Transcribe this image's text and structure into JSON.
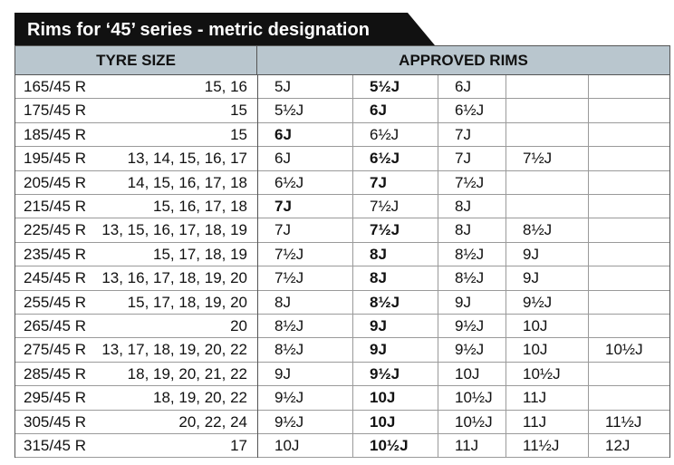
{
  "title": "Rims for ‘45’ series - metric designation",
  "table": {
    "headers": [
      "TYRE SIZE",
      "APPROVED RIMS"
    ],
    "rows": [
      {
        "size": "165/45 R",
        "diameters": "15, 16",
        "rims": [
          "5J",
          "5½J",
          "6J"
        ]
      },
      {
        "size": "175/45 R",
        "diameters": "15",
        "rims": [
          "5½J",
          "6J",
          "6½J"
        ]
      },
      {
        "size": "185/45 R",
        "diameters": "15",
        "rims": [
          "6J",
          "6½J",
          "7J"
        ]
      },
      {
        "size": "195/45 R",
        "diameters": "13, 14, 15, 16, 17",
        "rims": [
          "6J",
          "6½J",
          "7J",
          "7½J"
        ]
      },
      {
        "size": "205/45 R",
        "diameters": "14, 15, 16, 17, 18",
        "rims": [
          "6½J",
          "7J",
          "7½J"
        ]
      },
      {
        "size": "215/45 R",
        "diameters": "15, 16, 17, 18",
        "rims": [
          "7J",
          "7½J",
          "8J"
        ]
      },
      {
        "size": "225/45 R",
        "diameters": "13, 15, 16, 17, 18, 19",
        "rims": [
          "7J",
          "7½J",
          "8J",
          "8½J"
        ]
      },
      {
        "size": "235/45 R",
        "diameters": "15, 17, 18, 19",
        "rims": [
          "7½J",
          "8J",
          "8½J",
          "9J"
        ]
      },
      {
        "size": "245/45 R",
        "diameters": "13, 16, 17, 18, 19, 20",
        "rims": [
          "7½J",
          "8J",
          "8½J",
          "9J"
        ]
      },
      {
        "size": "255/45 R",
        "diameters": "15, 17, 18, 19, 20",
        "rims": [
          "8J",
          "8½J",
          "9J",
          "9½J"
        ]
      },
      {
        "size": "265/45 R",
        "diameters": "20",
        "rims": [
          "8½J",
          "9J",
          "9½J",
          "10J"
        ]
      },
      {
        "size": "275/45 R",
        "diameters": "13, 17, 18, 19, 20, 22",
        "rims": [
          "8½J",
          "9J",
          "9½J",
          "10J",
          "10½J"
        ]
      },
      {
        "size": "285/45 R",
        "diameters": "18, 19, 20, 21, 22",
        "rims": [
          "9J",
          "9½J",
          "10J",
          "10½J"
        ]
      },
      {
        "size": "295/45 R",
        "diameters": "18, 19, 20, 22",
        "rims": [
          "9½J",
          "10J",
          "10½J",
          "11J"
        ]
      },
      {
        "size": "305/45 R",
        "diameters": "20, 22, 24",
        "rims": [
          "9½J",
          "10J",
          "10½J",
          "11J",
          "11½J"
        ]
      },
      {
        "size": "315/45 R",
        "diameters": "17",
        "rims": [
          "10J",
          "10½J",
          "11J",
          "11½J",
          "12J"
        ]
      }
    ]
  }
}
